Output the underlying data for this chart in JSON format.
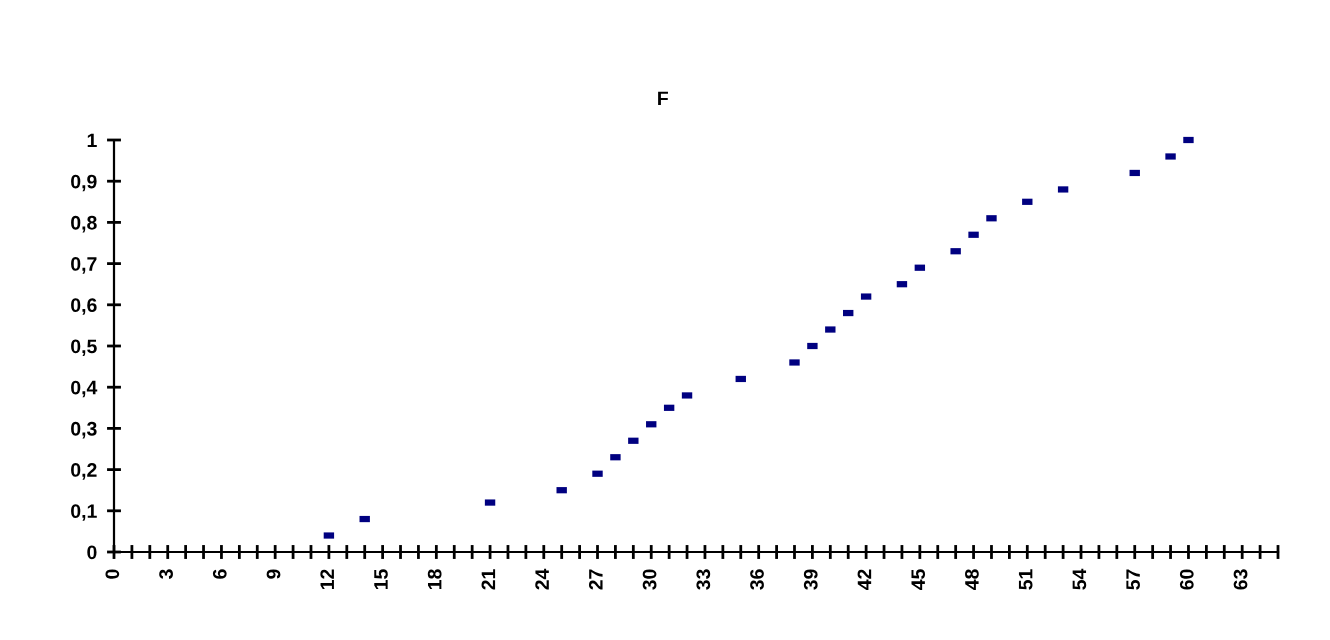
{
  "chart_data": {
    "type": "scatter",
    "title": "F",
    "x": [
      12,
      14,
      21,
      25,
      27,
      28,
      29,
      30,
      31,
      32,
      35,
      38,
      39,
      40,
      41,
      42,
      44,
      45,
      47,
      48,
      49,
      51,
      53,
      57,
      59,
      60
    ],
    "color": "#000080",
    "values": [
      0.04,
      0.08,
      0.12,
      0.15,
      0.19,
      0.23,
      0.27,
      0.31,
      0.35,
      0.38,
      0.42,
      0.46,
      0.5,
      0.54,
      0.58,
      0.62,
      0.65,
      0.69,
      0.73,
      0.77,
      0.81,
      0.85,
      0.88,
      0.92,
      0.96,
      1.0
    ],
    "xlim": [
      0,
      65
    ],
    "xticks": [
      0,
      {
        "value": 1,
        "label": null
      },
      {
        "value": 2,
        "label": null
      },
      3,
      {
        "value": 4,
        "label": null
      },
      {
        "value": 5,
        "label": null
      },
      6,
      {
        "value": 7,
        "label": null
      },
      {
        "value": 8,
        "label": null
      },
      9,
      {
        "value": 10,
        "label": null
      },
      {
        "value": 11,
        "label": null
      },
      12,
      {
        "value": 13,
        "label": null
      },
      {
        "value": 14,
        "label": null
      },
      15,
      {
        "value": 16,
        "label": null
      },
      {
        "value": 17,
        "label": null
      },
      18,
      {
        "value": 19,
        "label": null
      },
      {
        "value": 20,
        "label": null
      },
      21,
      {
        "value": 22,
        "label": null
      },
      {
        "value": 23,
        "label": null
      },
      24,
      {
        "value": 25,
        "label": null
      },
      {
        "value": 26,
        "label": null
      },
      27,
      {
        "value": 28,
        "label": null
      },
      {
        "value": 29,
        "label": null
      },
      30,
      {
        "value": 31,
        "label": null
      },
      {
        "value": 32,
        "label": null
      },
      33,
      {
        "value": 34,
        "label": null
      },
      {
        "value": 35,
        "label": null
      },
      36,
      {
        "value": 37,
        "label": null
      },
      {
        "value": 38,
        "label": null
      },
      39,
      {
        "value": 40,
        "label": null
      },
      {
        "value": 41,
        "label": null
      },
      42,
      {
        "value": 43,
        "label": null
      },
      {
        "value": 44,
        "label": null
      },
      45,
      {
        "value": 46,
        "label": null
      },
      {
        "value": 47,
        "label": null
      },
      48,
      {
        "value": 49,
        "label": null
      },
      {
        "value": 50,
        "label": null
      },
      51,
      {
        "value": 52,
        "label": null
      },
      {
        "value": 53,
        "label": null
      },
      54,
      {
        "value": 55,
        "label": null
      },
      {
        "value": 56,
        "label": null
      },
      57,
      {
        "value": 58,
        "label": null
      },
      {
        "value": 59,
        "label": null
      },
      60,
      {
        "value": 61,
        "label": null
      },
      {
        "value": 62,
        "label": null
      },
      63,
      {
        "value": 64,
        "label": null
      },
      {
        "value": 65,
        "label": null
      }
    ],
    "ylim": [
      0,
      1
    ],
    "yticks": [
      0,
      {
        "value": 0.1,
        "label": "0,1"
      },
      {
        "value": 0.2,
        "label": "0,2"
      },
      {
        "value": 0.3,
        "label": "0,3"
      },
      {
        "value": 0.4,
        "label": "0,4"
      },
      {
        "value": 0.5,
        "label": "0,5"
      },
      {
        "value": 0.6,
        "label": "0,6"
      },
      {
        "value": 0.7,
        "label": "0,7"
      },
      {
        "value": 0.8,
        "label": "0,8"
      },
      {
        "value": 0.9,
        "label": "0,9"
      },
      1
    ],
    "grid": false
  }
}
